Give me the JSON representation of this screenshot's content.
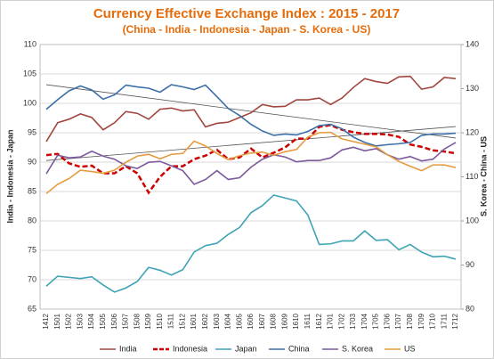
{
  "chart_data": {
    "type": "line",
    "title": "Currency Effective Exchange Index : 2015 - 2017",
    "subtitle": "(China - India - Indonesia - Japan - S. Korea - US)",
    "ylabel": "India - Indonesia - Japan",
    "y2label": "S. Korea - China - US",
    "categories": [
      "1412",
      "1501",
      "1502",
      "1503",
      "1504",
      "1505",
      "1506",
      "1507",
      "1508",
      "1509",
      "1510",
      "1511",
      "1512",
      "1601",
      "1602",
      "1603",
      "1604",
      "1605",
      "1606",
      "1607",
      "1608",
      "1609",
      "1610",
      "1611",
      "1612",
      "1701",
      "1702",
      "1703",
      "1704",
      "1705",
      "1706",
      "1707",
      "1708",
      "1709",
      "1710",
      "1711",
      "1712"
    ],
    "ylim": [
      65,
      110
    ],
    "yticks": [
      65,
      70,
      75,
      80,
      85,
      90,
      95,
      100,
      105,
      110
    ],
    "y2lim": [
      80,
      140
    ],
    "y2ticks": [
      80,
      90,
      100,
      110,
      120,
      130,
      140
    ],
    "grid": true,
    "legend": "bottom",
    "series": [
      {
        "name": "India",
        "color": "#a0463f",
        "dashed": false,
        "axis": "y",
        "values": [
          93.5,
          96.7,
          97.3,
          98.2,
          97.6,
          95.5,
          96.7,
          98.6,
          98.3,
          97.3,
          99.0,
          99.2,
          98.7,
          98.9,
          96.0,
          96.6,
          96.8,
          97.6,
          98.4,
          99.8,
          99.4,
          99.5,
          100.6,
          100.6,
          100.9,
          99.8,
          100.9,
          102.7,
          104.2,
          103.7,
          103.4,
          104.5,
          104.6,
          102.4,
          102.8,
          104.4,
          104.2
        ]
      },
      {
        "name": "Indonesia",
        "color": "#cc0000",
        "dashed": true,
        "axis": "y",
        "values": [
          91.2,
          91.4,
          89.8,
          89.2,
          89.4,
          88.1,
          88.1,
          89.3,
          88.1,
          84.8,
          87.5,
          89.3,
          89.3,
          90.5,
          91.1,
          92.1,
          90.5,
          90.8,
          92.3,
          90.8,
          91.6,
          92.5,
          94.0,
          94.0,
          96.0,
          96.3,
          95.5,
          95.1,
          94.8,
          94.8,
          94.7,
          94.3,
          93.0,
          92.6,
          92.0,
          91.8,
          91.5
        ]
      },
      {
        "name": "Japan",
        "color": "#3fa3b5",
        "dashed": false,
        "axis": "y",
        "values": [
          68.9,
          70.6,
          70.4,
          70.2,
          70.5,
          69.1,
          67.9,
          68.6,
          69.7,
          72.1,
          71.6,
          70.8,
          71.7,
          74.7,
          75.8,
          76.2,
          77.7,
          78.9,
          81.4,
          82.6,
          84.4,
          83.9,
          83.4,
          81.0,
          76.0,
          76.1,
          76.6,
          76.6,
          78.3,
          76.7,
          76.8,
          75.1,
          76.0,
          74.7,
          73.9,
          74.0,
          73.5
        ]
      },
      {
        "name": "China",
        "color": "#3b6fa8",
        "dashed": false,
        "axis": "y2",
        "values": [
          125.3,
          127.5,
          129.5,
          130.6,
          129.7,
          127.6,
          128.6,
          130.8,
          130.4,
          130.1,
          129.2,
          130.9,
          130.4,
          129.8,
          130.8,
          128.2,
          125.5,
          123.9,
          121.9,
          120.4,
          119.4,
          119.7,
          119.5,
          120.3,
          121.6,
          121.9,
          120.9,
          119.0,
          117.8,
          117.0,
          117.3,
          117.5,
          117.8,
          119.4,
          119.7,
          119.7,
          119.9
        ]
      },
      {
        "name": "S. Korea",
        "color": "#7d5a9b",
        "dashed": false,
        "axis": "y2",
        "values": [
          110.7,
          114.9,
          114.3,
          114.5,
          115.8,
          114.7,
          114.0,
          112.5,
          111.9,
          113.3,
          113.5,
          112.5,
          111.4,
          108.3,
          109.4,
          111.4,
          109.4,
          109.8,
          112.2,
          114.0,
          115.0,
          114.5,
          113.4,
          113.7,
          113.7,
          114.3,
          116.1,
          116.7,
          115.9,
          116.4,
          115.0,
          114.0,
          114.6,
          113.6,
          114.0,
          116.3,
          117.8
        ]
      },
      {
        "name": "US",
        "color": "#e69a3e",
        "dashed": false,
        "axis": "y2",
        "values": [
          106.2,
          108.3,
          109.6,
          111.5,
          111.2,
          110.8,
          111.5,
          113.3,
          114.7,
          115.1,
          114.1,
          115.1,
          115.3,
          118.1,
          117.0,
          115.3,
          113.9,
          114.8,
          115.4,
          115.6,
          114.9,
          115.7,
          116.2,
          119.0,
          120.0,
          120.1,
          118.6,
          118.0,
          117.4,
          116.8,
          115.0,
          113.5,
          112.4,
          111.4,
          112.7,
          112.7,
          112.1
        ]
      }
    ],
    "trendlines": [
      {
        "axis": "y2",
        "color": "#555555",
        "values": [
          130.9,
          118.8
        ]
      },
      {
        "axis": "y2",
        "color": "#555555",
        "values": [
          113.7,
          121.4
        ]
      }
    ]
  }
}
